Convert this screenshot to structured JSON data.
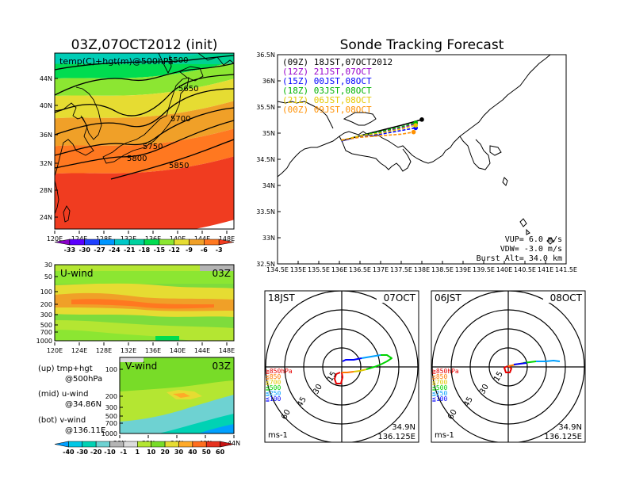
{
  "chart_data": [
    {
      "type": "heatmap",
      "panel": "500hPa temperature and geopotential height",
      "title": "03Z,07OCT2012 (init)",
      "annotation": "temp(C)+hgt(m)@500hPa",
      "lon_ticks": [
        "120E",
        "124E",
        "128E",
        "132E",
        "136E",
        "140E",
        "144E",
        "148E"
      ],
      "lat_ticks": [
        "24N",
        "28N",
        "32N",
        "36N",
        "40N",
        "44N"
      ],
      "height_contours": [
        {
          "label": "5500",
          "value": 5500
        },
        {
          "label": "5650",
          "value": 5650
        },
        {
          "label": "5700",
          "value": 5700
        },
        {
          "label": "5750",
          "value": 5750
        },
        {
          "label": "5800",
          "value": 5800
        },
        {
          "label": "5850",
          "value": 5850
        }
      ],
      "colorbar": {
        "labels": [
          "-33",
          "-30",
          "-27",
          "-24",
          "-21",
          "-18",
          "-15",
          "-12",
          "-9",
          "-6",
          "-3"
        ],
        "colors": [
          "#8a00c8",
          "#5b00ff",
          "#1e40ff",
          "#0096ff",
          "#00c8c8",
          "#00d2a0",
          "#00dc50",
          "#8ce632",
          "#e6dc32",
          "#f0a028",
          "#ff7820",
          "#f03c20"
        ]
      }
    },
    {
      "type": "heatmap",
      "panel": "U-wind",
      "label": "U-wind",
      "time": "03Z",
      "lon_ticks": [
        "120E",
        "124E",
        "128E",
        "132E",
        "136E",
        "140E",
        "144E",
        "148E"
      ],
      "pressure_ticks": [
        "30",
        "50",
        "100",
        "200",
        "300",
        "500",
        "700",
        "1000"
      ]
    },
    {
      "type": "heatmap",
      "panel": "V-wind",
      "label": "V-wind",
      "time": "03Z",
      "lat_ticks": [
        "28N",
        "32N",
        "36N",
        "40N",
        "44N"
      ],
      "pressure_ticks": [
        "100",
        "200",
        "300",
        "500",
        "700",
        "1000"
      ],
      "colorbar": {
        "labels": [
          "-40",
          "-30",
          "-20",
          "-10",
          "-1",
          "1",
          "10",
          "20",
          "30",
          "40",
          "50",
          "60"
        ],
        "colors": [
          "#00a0ff",
          "#00c8e6",
          "#00d2b4",
          "#6ed2d2",
          "#b4b4b4",
          "#dcdcdc",
          "#b4e632",
          "#78dc28",
          "#e6dc32",
          "#ffaa28",
          "#ff6e1e",
          "#e6321e",
          "#c81414"
        ]
      }
    },
    {
      "type": "line",
      "panel": "Sonde trajectories",
      "title": "Sonde Tracking Forecast",
      "x_ticks": [
        "134.5E",
        "135E",
        "135.5E",
        "136E",
        "136.5E",
        "137E",
        "137.5E",
        "138E",
        "138.5E",
        "139E",
        "139.5E",
        "140E",
        "140.5E",
        "141E",
        "141.5E"
      ],
      "y_ticks": [
        "32.5N",
        "33N",
        "33.5N",
        "34N",
        "34.5N",
        "35N",
        "35.5N",
        "36N",
        "36.5N"
      ],
      "xlim": [
        134.5,
        141.5
      ],
      "ylim": [
        32.5,
        36.5
      ],
      "series": [
        {
          "name": "(09Z)  18JST,07OCT2012",
          "color": "#000000",
          "x": [
            136.05,
            136.5,
            137.0,
            137.5,
            138.0
          ],
          "y": [
            34.85,
            34.95,
            35.05,
            35.15,
            35.26
          ]
        },
        {
          "name": "(12Z)  21JST,07OCT",
          "color": "#9900cc",
          "x": [
            136.05,
            136.5,
            137.0,
            137.5,
            137.85
          ],
          "y": [
            34.85,
            34.95,
            35.02,
            35.1,
            35.18
          ]
        },
        {
          "name": "(15Z)  00JST,08OCT",
          "color": "#0000ff",
          "x": [
            136.05,
            136.5,
            137.0,
            137.5,
            137.85
          ],
          "y": [
            34.85,
            34.93,
            34.98,
            35.05,
            35.1
          ]
        },
        {
          "name": "(18Z)  03JST,08OCT",
          "color": "#00b400",
          "x": [
            136.05,
            136.5,
            137.0,
            137.5,
            137.85
          ],
          "y": [
            34.86,
            34.95,
            35.03,
            35.12,
            35.2
          ]
        },
        {
          "name": "(21Z)  06JST,08OCT",
          "color": "#e6c800",
          "x": [
            136.05,
            136.5,
            137.0,
            137.5,
            137.85
          ],
          "y": [
            34.86,
            34.95,
            35.0,
            35.08,
            35.15
          ]
        },
        {
          "name": "(00Z)  09JST,08OCT",
          "color": "#ff9000",
          "x": [
            136.05,
            136.5,
            137.0,
            137.5,
            137.8
          ],
          "y": [
            34.87,
            34.92,
            34.95,
            34.98,
            35.02
          ]
        }
      ],
      "params": [
        "VUP=  6.0  m/s",
        "VDW= -3.0  m/s",
        "Burst Alt=  34.0  km"
      ]
    },
    {
      "type": "line",
      "panel": "Hodograph 18JST",
      "left_label": "18JST",
      "right_label": "07OCT",
      "ring_labels": [
        "15",
        "30",
        "45",
        "60"
      ],
      "unit": "ms-1",
      "location": [
        "34.9N",
        "136.125E"
      ],
      "levels": [
        "≧850hPa",
        "≦850",
        "≦700",
        "≦500",
        "≦250",
        "≦100"
      ],
      "level_colors": [
        "#e60000",
        "#ff7800",
        "#dcc800",
        "#00d200",
        "#00a0ff",
        "#0000ff"
      ]
    },
    {
      "type": "line",
      "panel": "Hodograph 06JST",
      "left_label": "06JST",
      "right_label": "08OCT",
      "ring_labels": [
        "15",
        "30",
        "45",
        "60"
      ],
      "unit": "ms-1",
      "location": [
        "34.9N",
        "136.125E"
      ],
      "levels": [
        "≧850hPa",
        "≦850",
        "≦700",
        "≦500",
        "≦250",
        "≦100"
      ],
      "level_colors": [
        "#e60000",
        "#ff7800",
        "#dcc800",
        "#00d200",
        "#00a0ff",
        "#0000ff"
      ]
    }
  ],
  "notes": {
    "up": [
      "(up)  tmp+hgt",
      "@500hPa"
    ],
    "mid": [
      "(mid)  u-wind",
      "@34.86N"
    ],
    "bot": [
      "(bot)  v-wind",
      "@136.11E"
    ]
  }
}
